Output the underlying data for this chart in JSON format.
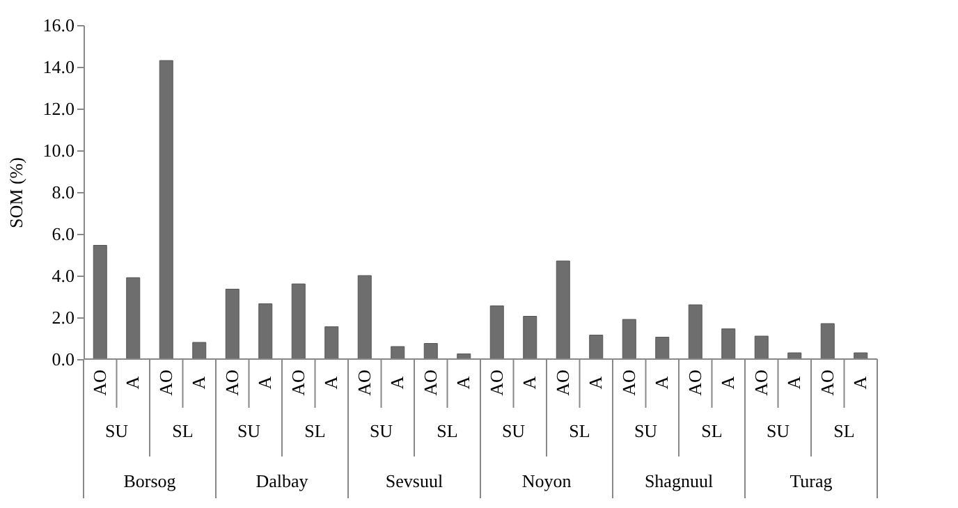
{
  "chart_data": {
    "type": "bar",
    "ylabel": "SOM (%)",
    "categories": [
      "AO",
      "A",
      "AO",
      "A",
      "AO",
      "A",
      "AO",
      "A",
      "AO",
      "A",
      "AO",
      "A",
      "AO",
      "A",
      "AO",
      "A",
      "AO",
      "A",
      "AO",
      "A",
      "AO",
      "A",
      "AO",
      "A"
    ],
    "values": [
      5.45,
      3.9,
      14.3,
      0.8,
      3.35,
      2.65,
      3.6,
      1.55,
      4.0,
      0.6,
      0.75,
      0.25,
      2.55,
      2.05,
      4.7,
      1.15,
      1.9,
      1.05,
      2.6,
      1.45,
      1.1,
      0.3,
      1.7,
      0.3
    ],
    "color": "#6e6e6e",
    "annotations": [
      "SU",
      "SL",
      "SU",
      "SL",
      "SU",
      "SL",
      "SU",
      "SL",
      "SU",
      "SL",
      "SU",
      "SL",
      "Borsog",
      "Dalbay",
      "Sevsuul",
      "Noyon",
      "Shagnuul",
      "Turag"
    ],
    "ylim": [
      0,
      16
    ],
    "yticks": [
      {
        "value": 0,
        "label": "0.0"
      },
      {
        "value": 2,
        "label": "2.0"
      },
      {
        "value": 4,
        "label": "4.0"
      },
      {
        "value": 6,
        "label": "6.0"
      },
      {
        "value": 8,
        "label": "8.0"
      },
      {
        "value": 10,
        "label": "10.0"
      },
      {
        "value": 12,
        "label": "12.0"
      },
      {
        "value": 14,
        "label": "14.0"
      },
      {
        "value": 16,
        "label": "16.0"
      }
    ],
    "grid": false
  }
}
